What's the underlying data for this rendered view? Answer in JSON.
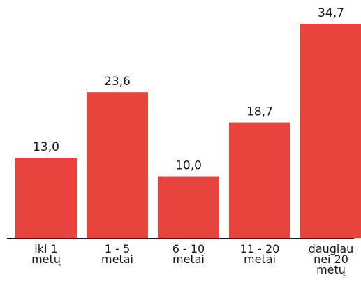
{
  "chart_data": {
    "type": "bar",
    "categories": [
      [
        "iki 1",
        "metų"
      ],
      [
        "1 - 5",
        "metai"
      ],
      [
        "6 - 10",
        "metai"
      ],
      [
        "11 - 20",
        "metai"
      ],
      [
        "daugiau",
        "nei 20",
        "metų"
      ]
    ],
    "values": [
      13.0,
      23.6,
      10.0,
      18.7,
      34.7
    ],
    "value_labels": [
      "13,0",
      "23,6",
      "10,0",
      "18,7",
      "34,7"
    ],
    "title": "",
    "xlabel": "",
    "ylabel": "",
    "ylim": [
      0,
      34.7
    ],
    "grid": false,
    "legend": "none",
    "bar_color": "#e8443e",
    "text_color": "#1a1a1a"
  }
}
